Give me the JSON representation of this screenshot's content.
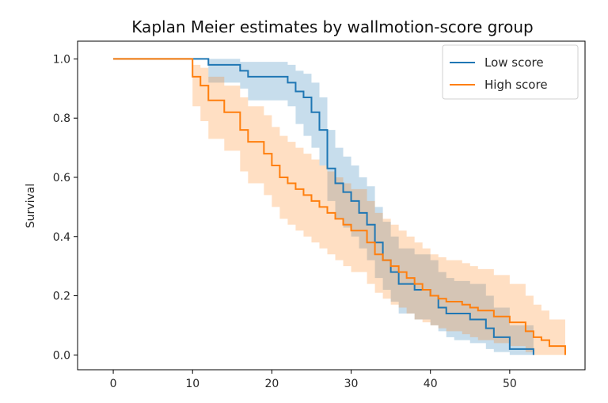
{
  "chart_data": {
    "type": "line",
    "title": "Kaplan Meier estimates by wallmotion-score group",
    "xlabel": "",
    "ylabel": "Survival",
    "xlim": [
      -4.5,
      59.5
    ],
    "ylim": [
      -0.05,
      1.06
    ],
    "x_ticks": [
      0,
      10,
      20,
      30,
      40,
      50
    ],
    "y_ticks": [
      0.0,
      0.2,
      0.4,
      0.6,
      0.8,
      1.0
    ],
    "x_tick_labels": [
      "0",
      "10",
      "20",
      "30",
      "40",
      "50"
    ],
    "y_tick_labels": [
      "0.0",
      "0.2",
      "0.4",
      "0.6",
      "0.8",
      "1.0"
    ],
    "grid": false,
    "legend_position": "top-right",
    "series": [
      {
        "name": "Low score",
        "color": "#1f77b4",
        "band_color": "#1f77b4",
        "x": [
          0,
          9,
          12,
          15,
          16,
          17,
          22,
          23,
          24,
          25,
          26,
          27,
          28,
          29,
          30,
          31,
          32,
          33,
          34,
          35,
          36,
          37,
          38,
          40,
          41,
          42,
          43,
          45,
          47,
          48,
          50,
          53
        ],
        "y": [
          1.0,
          1.0,
          0.98,
          0.98,
          0.96,
          0.94,
          0.92,
          0.89,
          0.87,
          0.82,
          0.76,
          0.63,
          0.58,
          0.55,
          0.52,
          0.48,
          0.44,
          0.38,
          0.32,
          0.28,
          0.24,
          0.24,
          0.22,
          0.2,
          0.16,
          0.14,
          0.14,
          0.12,
          0.09,
          0.06,
          0.02,
          0.0
        ],
        "lower": [
          1.0,
          1.0,
          0.92,
          0.92,
          0.9,
          0.86,
          0.84,
          0.78,
          0.74,
          0.7,
          0.64,
          0.52,
          0.46,
          0.43,
          0.4,
          0.36,
          0.32,
          0.26,
          0.22,
          0.18,
          0.14,
          0.14,
          0.12,
          0.1,
          0.08,
          0.06,
          0.05,
          0.04,
          0.02,
          0.01,
          0.0,
          0.0
        ],
        "upper": [
          1.0,
          1.0,
          1.0,
          1.0,
          0.99,
          0.99,
          0.98,
          0.96,
          0.95,
          0.92,
          0.87,
          0.76,
          0.7,
          0.67,
          0.64,
          0.6,
          0.57,
          0.5,
          0.45,
          0.4,
          0.36,
          0.36,
          0.34,
          0.32,
          0.28,
          0.26,
          0.25,
          0.24,
          0.2,
          0.16,
          0.1,
          0.0
        ]
      },
      {
        "name": "High score",
        "color": "#ff7f0e",
        "band_color": "#ff7f0e",
        "x": [
          0,
          9,
          10,
          11,
          12,
          14,
          16,
          17,
          19,
          20,
          21,
          22,
          23,
          24,
          25,
          26,
          27,
          28,
          29,
          30,
          32,
          33,
          34,
          35,
          36,
          37,
          38,
          39,
          40,
          41,
          42,
          44,
          45,
          46,
          48,
          50,
          52,
          53,
          54,
          55,
          57
        ],
        "y": [
          1.0,
          1.0,
          0.94,
          0.91,
          0.86,
          0.82,
          0.76,
          0.72,
          0.68,
          0.64,
          0.6,
          0.58,
          0.56,
          0.54,
          0.52,
          0.5,
          0.48,
          0.46,
          0.44,
          0.42,
          0.38,
          0.34,
          0.32,
          0.3,
          0.28,
          0.26,
          0.24,
          0.22,
          0.2,
          0.19,
          0.18,
          0.17,
          0.16,
          0.15,
          0.13,
          0.11,
          0.08,
          0.06,
          0.05,
          0.03,
          0.0
        ],
        "lower": [
          1.0,
          1.0,
          0.84,
          0.79,
          0.73,
          0.69,
          0.62,
          0.58,
          0.54,
          0.5,
          0.46,
          0.44,
          0.42,
          0.4,
          0.38,
          0.36,
          0.34,
          0.32,
          0.3,
          0.28,
          0.24,
          0.21,
          0.19,
          0.17,
          0.16,
          0.14,
          0.12,
          0.11,
          0.1,
          0.09,
          0.08,
          0.07,
          0.06,
          0.05,
          0.04,
          0.03,
          0.01,
          0.0,
          0.0,
          0.0,
          0.0
        ],
        "upper": [
          1.0,
          1.0,
          0.98,
          0.97,
          0.94,
          0.91,
          0.87,
          0.84,
          0.81,
          0.77,
          0.74,
          0.72,
          0.7,
          0.68,
          0.66,
          0.64,
          0.62,
          0.6,
          0.58,
          0.56,
          0.52,
          0.48,
          0.46,
          0.44,
          0.42,
          0.4,
          0.38,
          0.36,
          0.34,
          0.33,
          0.32,
          0.31,
          0.3,
          0.29,
          0.27,
          0.24,
          0.2,
          0.17,
          0.15,
          0.12,
          0.1
        ]
      }
    ]
  }
}
